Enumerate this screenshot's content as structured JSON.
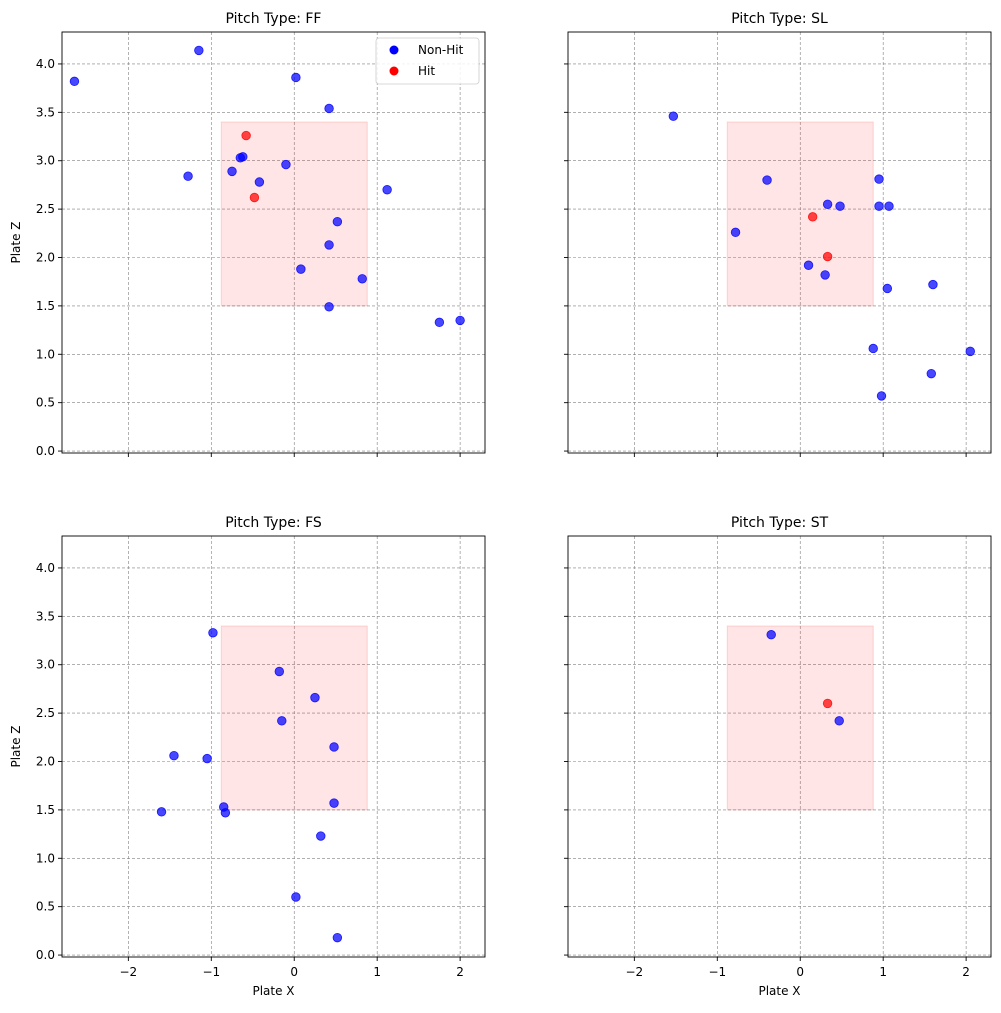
{
  "chart_data": [
    {
      "type": "scatter",
      "title": "Pitch Type: FF",
      "xlabel": "",
      "ylabel": "Plate Z",
      "xlim": [
        -2.8,
        2.3
      ],
      "ylim": [
        -0.02,
        4.33
      ],
      "grid": true,
      "legend": "top-right",
      "strike_zone": {
        "x": [
          -0.88,
          0.88
        ],
        "z": [
          1.5,
          3.4
        ]
      },
      "series": [
        {
          "name": "Non-Hit",
          "points": [
            [
              -2.65,
              3.82
            ],
            [
              -1.15,
              4.14
            ],
            [
              0.02,
              3.86
            ],
            [
              0.42,
              3.54
            ],
            [
              -1.28,
              2.84
            ],
            [
              -0.75,
              2.89
            ],
            [
              -0.65,
              3.03
            ],
            [
              -0.62,
              3.04
            ],
            [
              -0.1,
              2.96
            ],
            [
              -0.42,
              2.78
            ],
            [
              1.12,
              2.7
            ],
            [
              0.52,
              2.37
            ],
            [
              0.42,
              2.13
            ],
            [
              0.08,
              1.88
            ],
            [
              0.82,
              1.78
            ],
            [
              0.42,
              1.49
            ],
            [
              1.75,
              1.33
            ],
            [
              2.0,
              1.35
            ]
          ]
        },
        {
          "name": "Hit",
          "points": [
            [
              -0.58,
              3.26
            ],
            [
              -0.48,
              2.62
            ]
          ]
        }
      ]
    },
    {
      "type": "scatter",
      "title": "Pitch Type: SL",
      "xlabel": "",
      "ylabel": "",
      "xlim": [
        -2.8,
        2.3
      ],
      "ylim": [
        -0.02,
        4.33
      ],
      "grid": true,
      "strike_zone": {
        "x": [
          -0.88,
          0.88
        ],
        "z": [
          1.5,
          3.4
        ]
      },
      "series": [
        {
          "name": "Non-Hit",
          "points": [
            [
              -1.53,
              3.46
            ],
            [
              -0.4,
              2.8
            ],
            [
              -0.78,
              2.26
            ],
            [
              0.33,
              2.55
            ],
            [
              0.48,
              2.53
            ],
            [
              0.95,
              2.81
            ],
            [
              0.95,
              2.53
            ],
            [
              1.07,
              2.53
            ],
            [
              0.1,
              1.92
            ],
            [
              0.3,
              1.82
            ],
            [
              1.05,
              1.68
            ],
            [
              1.6,
              1.72
            ],
            [
              0.88,
              1.06
            ],
            [
              1.58,
              0.8
            ],
            [
              2.05,
              1.03
            ],
            [
              0.98,
              0.57
            ]
          ]
        },
        {
          "name": "Hit",
          "points": [
            [
              0.15,
              2.42
            ],
            [
              0.33,
              2.01
            ]
          ]
        }
      ]
    },
    {
      "type": "scatter",
      "title": "Pitch Type: FS",
      "xlabel": "Plate X",
      "ylabel": "Plate Z",
      "xlim": [
        -2.8,
        2.3
      ],
      "ylim": [
        -0.02,
        4.33
      ],
      "grid": true,
      "strike_zone": {
        "x": [
          -0.88,
          0.88
        ],
        "z": [
          1.5,
          3.4
        ]
      },
      "series": [
        {
          "name": "Non-Hit",
          "points": [
            [
              -0.98,
              3.33
            ],
            [
              -0.18,
              2.93
            ],
            [
              0.25,
              2.66
            ],
            [
              -0.15,
              2.42
            ],
            [
              0.48,
              2.15
            ],
            [
              -1.45,
              2.06
            ],
            [
              -1.05,
              2.03
            ],
            [
              -0.85,
              1.53
            ],
            [
              -0.83,
              1.47
            ],
            [
              0.48,
              1.57
            ],
            [
              -1.6,
              1.48
            ],
            [
              0.32,
              1.23
            ],
            [
              0.02,
              0.6
            ],
            [
              0.52,
              0.18
            ]
          ]
        },
        {
          "name": "Hit",
          "points": []
        }
      ]
    },
    {
      "type": "scatter",
      "title": "Pitch Type: ST",
      "xlabel": "Plate X",
      "ylabel": "",
      "xlim": [
        -2.8,
        2.3
      ],
      "ylim": [
        -0.02,
        4.33
      ],
      "grid": true,
      "strike_zone": {
        "x": [
          -0.88,
          0.88
        ],
        "z": [
          1.5,
          3.4
        ]
      },
      "series": [
        {
          "name": "Non-Hit",
          "points": [
            [
              -0.35,
              3.31
            ],
            [
              0.47,
              2.42
            ]
          ]
        },
        {
          "name": "Hit",
          "points": [
            [
              0.33,
              2.6
            ]
          ]
        }
      ]
    }
  ],
  "axes": {
    "xticks": [
      "−2",
      "−1",
      "0",
      "1",
      "2"
    ],
    "yticks": [
      "0.0",
      "0.5",
      "1.0",
      "1.5",
      "2.0",
      "2.5",
      "3.0",
      "3.5",
      "4.0"
    ]
  },
  "legend": {
    "items": [
      {
        "label": "Non-Hit",
        "color": "#0000ff"
      },
      {
        "label": "Hit",
        "color": "#ff0000"
      }
    ]
  },
  "colors": {
    "non_hit": "#0000ff",
    "hit": "#ff0000",
    "strike_zone": "#ff0000",
    "grid": "#808080"
  }
}
